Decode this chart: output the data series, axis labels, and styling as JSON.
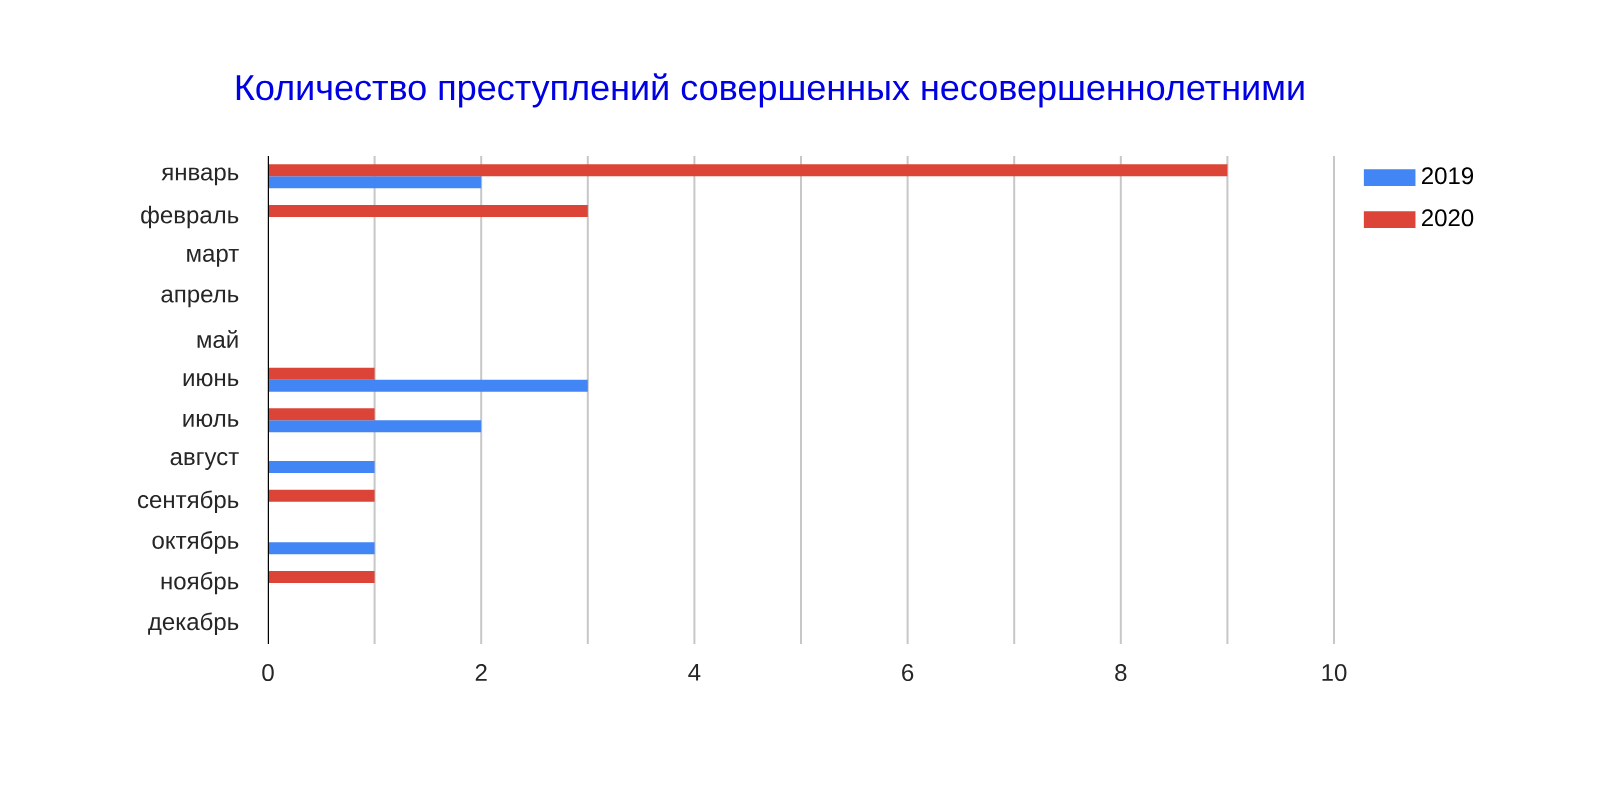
{
  "chart_data": {
    "type": "bar",
    "orientation": "horizontal",
    "title": "Количество преступлений совершенных несовершеннолетними",
    "categories": [
      "январь",
      "февраль",
      "март",
      "апрель",
      "май",
      "июнь",
      "июль",
      "август",
      "сентябрь",
      "октябрь",
      "ноябрь",
      "декабрь"
    ],
    "series": [
      {
        "name": "2019",
        "color": "#4285f4",
        "values": [
          2,
          0,
          0,
          0,
          0,
          3,
          2,
          1,
          0,
          1,
          0,
          0
        ]
      },
      {
        "name": "2020",
        "color": "#db4437",
        "values": [
          9,
          3,
          0,
          0,
          0,
          1,
          1,
          0,
          1,
          0,
          1,
          0
        ]
      }
    ],
    "xlim": [
      0,
      10
    ],
    "xticks": [
      0,
      {
        "value": 1,
        "label": null
      },
      2,
      {
        "value": 3,
        "label": null
      },
      4,
      {
        "value": 5,
        "label": null
      },
      6,
      {
        "value": 7,
        "label": null
      },
      8,
      {
        "value": 9,
        "label": null
      },
      10
    ],
    "grid": "x",
    "legend": "top right"
  }
}
